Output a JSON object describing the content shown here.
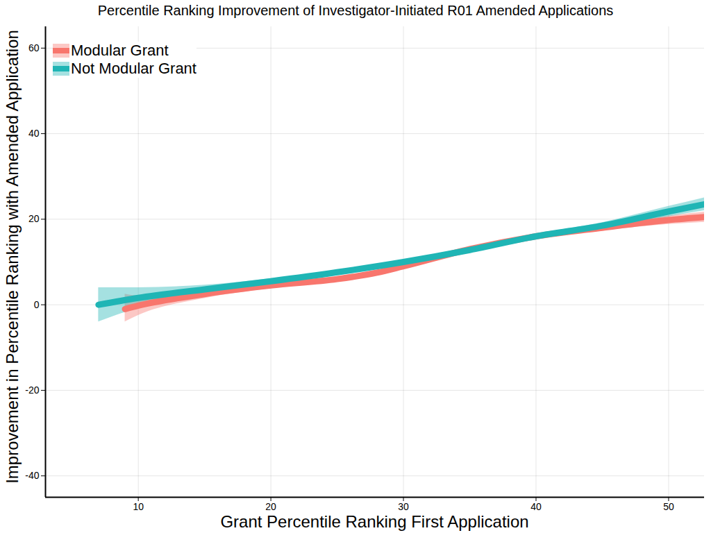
{
  "chart_data": {
    "type": "line",
    "title": "Percentile Ranking Improvement of Investigator-Initiated R01 Amended Applications",
    "x_label": "Grant Percentile Ranking First Application",
    "y_label": "Improvement in Percentile Ranking with Amended Application",
    "xlim": [
      3,
      52.7
    ],
    "ylim": [
      -45,
      65
    ],
    "xticks": [
      10,
      20,
      30,
      40,
      50
    ],
    "yticks": [
      -40,
      -20,
      0,
      20,
      40,
      60
    ],
    "grid": true,
    "legend": "top-left",
    "series": [
      {
        "name": "Modular Grant",
        "color": "#f8766d",
        "x": [
          9,
          10,
          15,
          20,
          25,
          28,
          30,
          35,
          40,
          45,
          50,
          52.7
        ],
        "values": [
          -1,
          -0.2,
          2.5,
          4.5,
          6,
          7.5,
          9,
          13,
          16,
          18,
          19.8,
          20.5
        ],
        "lower": [
          -4,
          -2.5,
          1.5,
          3.8,
          5.4,
          7,
          8.5,
          12.5,
          15.5,
          17.3,
          18.8,
          19.3
        ],
        "upper": [
          2.5,
          2.1,
          3.5,
          5.2,
          6.6,
          8,
          9.5,
          13.5,
          16.5,
          18.7,
          20.8,
          21.7
        ]
      },
      {
        "name": "Not Modular Grant",
        "color": "#1fb5b5",
        "x": [
          7,
          10,
          15,
          20,
          25,
          30,
          35,
          40,
          45,
          50,
          52.7
        ],
        "values": [
          0,
          1.6,
          3.6,
          5.5,
          7.6,
          10,
          12.8,
          16,
          18.5,
          21.8,
          23.5
        ],
        "lower": [
          -4,
          -0.8,
          2.6,
          4.9,
          7.1,
          9.6,
          12.4,
          15.5,
          17.8,
          20.6,
          22
        ],
        "upper": [
          4,
          4,
          4.6,
          6.1,
          8.1,
          10.4,
          13.2,
          16.5,
          19.2,
          23,
          25
        ]
      }
    ]
  }
}
